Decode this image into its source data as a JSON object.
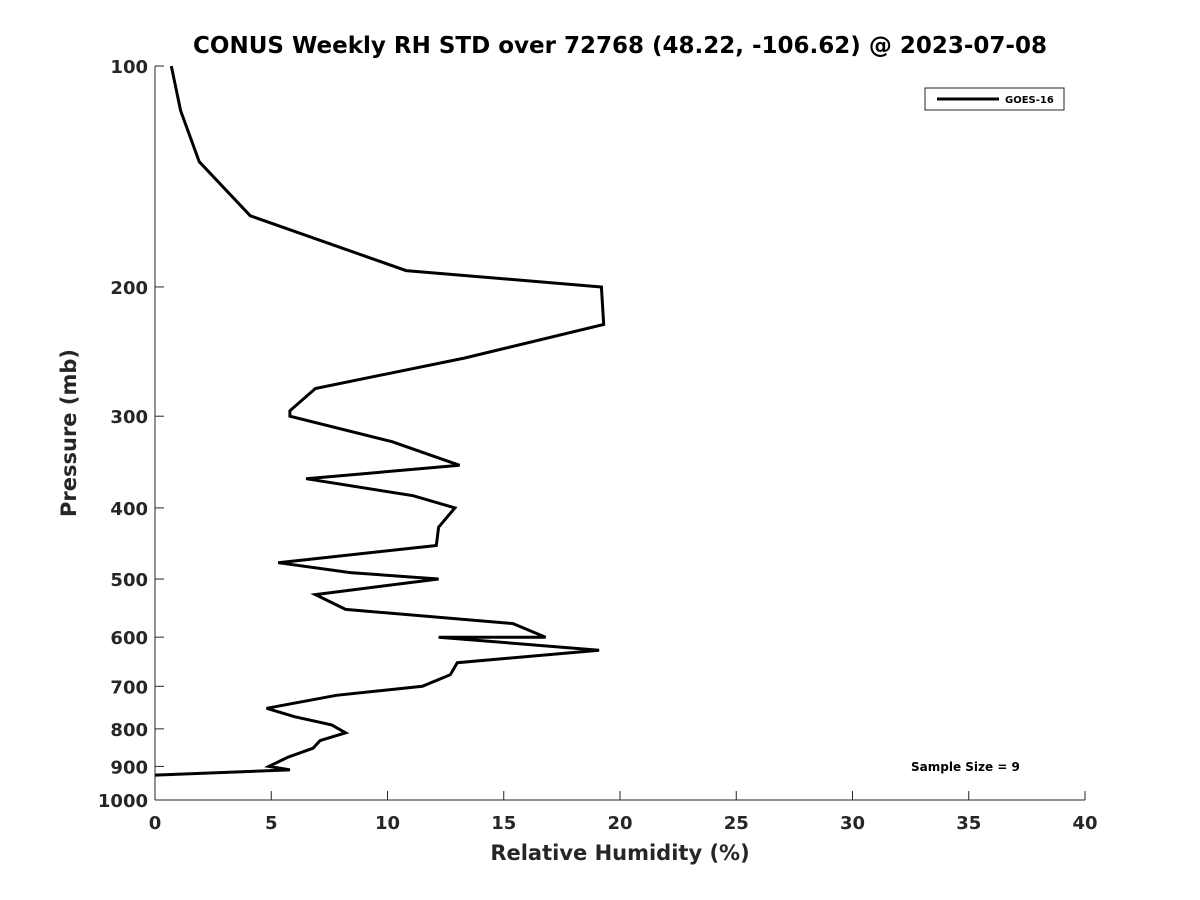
{
  "chart_data": {
    "type": "line",
    "title": "CONUS Weekly RH STD over 72768 (48.22, -106.62) @ 2023-07-08",
    "xlabel": "Relative Humidity (%)",
    "ylabel": "Pressure (mb)",
    "xlim": [
      0,
      40
    ],
    "ylim": [
      100,
      1000
    ],
    "y_scale": "log",
    "y_reversed": true,
    "x_ticks": [
      "0",
      "5",
      "10",
      "15",
      "20",
      "25",
      "30",
      "35",
      "40"
    ],
    "y_ticks": [
      "100",
      "200",
      "300",
      "400",
      "500",
      "600",
      "700",
      "800",
      "900",
      "1000"
    ],
    "grid": false,
    "legend_position": "top-right",
    "annotation": "Sample Size = 9",
    "series": [
      {
        "name": "GOES-16",
        "color": "#000000",
        "x": [
          0.7,
          1.1,
          1.9,
          4.1,
          10.8,
          19.2,
          19.3,
          13.3,
          6.9,
          5.8,
          5.8,
          10.2,
          13.1,
          6.5,
          11.1,
          12.9,
          12.2,
          12.1,
          5.3,
          8.4,
          12.2,
          6.9,
          8.2,
          15.4,
          16.8,
          12.2,
          19.1,
          13.0,
          12.7,
          11.5,
          7.8,
          4.8,
          6.0,
          7.6,
          8.2,
          7.1,
          6.8,
          5.7,
          4.9,
          5.8,
          0.0
        ],
        "y": [
          100,
          115,
          135,
          160,
          190,
          200,
          225,
          250,
          275,
          295,
          300,
          325,
          350,
          365,
          385,
          400,
          425,
          450,
          475,
          490,
          500,
          525,
          550,
          575,
          600,
          600,
          625,
          650,
          675,
          700,
          720,
          750,
          770,
          790,
          810,
          830,
          850,
          875,
          900,
          910,
          925
        ]
      }
    ]
  }
}
